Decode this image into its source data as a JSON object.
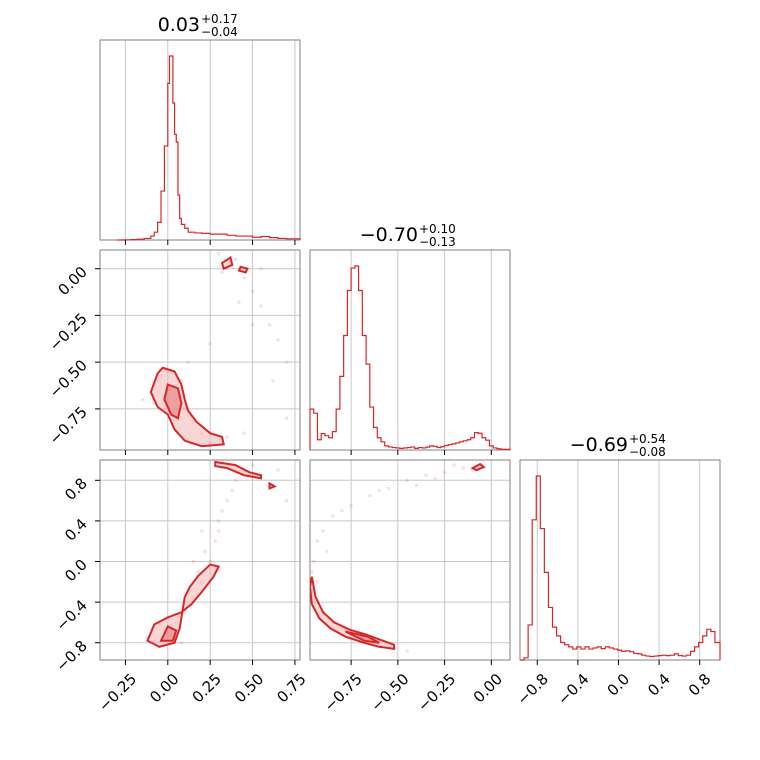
{
  "chart_data": {
    "type": "corner",
    "titles": [
      {
        "value": "0.03",
        "plus": "+0.17",
        "minus": "−0.04"
      },
      {
        "value": "−0.70",
        "plus": "+0.10",
        "minus": "−0.13"
      },
      {
        "value": "−0.69",
        "plus": "+0.54",
        "minus": "−0.08"
      }
    ],
    "ranges": [
      [
        -0.4,
        0.78
      ],
      [
        -0.97,
        0.1
      ],
      [
        -0.97,
        1.0
      ]
    ],
    "ticks": [
      {
        "values": [
          -0.25,
          0.0,
          0.25,
          0.5,
          0.75
        ],
        "labels": [
          "−0.25",
          "0.00",
          "0.25",
          "0.50",
          "0.75"
        ]
      },
      {
        "values": [
          -0.75,
          -0.5,
          -0.25,
          0.0
        ],
        "labels": [
          "−0.75",
          "−0.50",
          "−0.25",
          "0.00"
        ]
      },
      {
        "values": [
          -0.8,
          -0.4,
          0.0,
          0.4,
          0.8
        ],
        "labels": [
          "−0.8",
          "−0.4",
          "0.0",
          "0.4",
          "0.8"
        ]
      }
    ],
    "grid": true,
    "color": "#d62728",
    "histograms": [
      {
        "param": 0,
        "edges": [
          -0.3,
          -0.26,
          -0.22,
          -0.18,
          -0.14,
          -0.1,
          -0.08,
          -0.06,
          -0.04,
          -0.02,
          0.0,
          0.01,
          0.02,
          0.03,
          0.04,
          0.05,
          0.06,
          0.07,
          0.08,
          0.1,
          0.12,
          0.16,
          0.2,
          0.25,
          0.3,
          0.35,
          0.4,
          0.45,
          0.5,
          0.55,
          0.6,
          0.65,
          0.7,
          0.78
        ],
        "counts": [
          0,
          1,
          2,
          4,
          8,
          20,
          40,
          90,
          250,
          480,
          800,
          940,
          940,
          700,
          540,
          500,
          230,
          110,
          80,
          60,
          40,
          36,
          34,
          30,
          30,
          24,
          20,
          20,
          14,
          18,
          12,
          8,
          6
        ]
      },
      {
        "param": 1,
        "edges": [
          -0.97,
          -0.95,
          -0.93,
          -0.91,
          -0.89,
          -0.87,
          -0.85,
          -0.83,
          -0.81,
          -0.79,
          -0.77,
          -0.75,
          -0.73,
          -0.71,
          -0.69,
          -0.67,
          -0.65,
          -0.63,
          -0.61,
          -0.59,
          -0.57,
          -0.55,
          -0.53,
          -0.51,
          -0.49,
          -0.47,
          -0.45,
          -0.43,
          -0.41,
          -0.39,
          -0.37,
          -0.35,
          -0.33,
          -0.31,
          -0.29,
          -0.27,
          -0.25,
          -0.23,
          -0.21,
          -0.19,
          -0.17,
          -0.15,
          -0.13,
          -0.11,
          -0.09,
          -0.07,
          -0.05,
          -0.03,
          -0.01,
          0.01,
          0.03,
          0.05,
          0.07,
          0.1
        ],
        "counts": [
          200,
          180,
          50,
          80,
          70,
          60,
          90,
          200,
          360,
          560,
          780,
          890,
          900,
          780,
          560,
          420,
          210,
          110,
          60,
          40,
          20,
          15,
          12,
          10,
          8,
          10,
          12,
          15,
          8,
          12,
          10,
          14,
          20,
          18,
          12,
          16,
          22,
          26,
          30,
          35,
          40,
          45,
          50,
          60,
          85,
          82,
          60,
          48,
          20,
          10,
          6,
          4,
          3
        ]
      },
      {
        "param": 2,
        "edges": [
          -0.97,
          -0.93,
          -0.89,
          -0.85,
          -0.81,
          -0.77,
          -0.73,
          -0.69,
          -0.65,
          -0.61,
          -0.57,
          -0.53,
          -0.49,
          -0.45,
          -0.41,
          -0.37,
          -0.33,
          -0.29,
          -0.25,
          -0.21,
          -0.17,
          -0.13,
          -0.09,
          -0.05,
          -0.01,
          0.03,
          0.07,
          0.11,
          0.15,
          0.19,
          0.23,
          0.27,
          0.31,
          0.35,
          0.39,
          0.43,
          0.47,
          0.51,
          0.55,
          0.59,
          0.63,
          0.67,
          0.71,
          0.75,
          0.79,
          0.83,
          0.87,
          0.91,
          0.95,
          1.0
        ],
        "counts": [
          0,
          10,
          160,
          640,
          840,
          600,
          400,
          240,
          150,
          110,
          80,
          70,
          60,
          50,
          60,
          50,
          60,
          50,
          55,
          60,
          52,
          60,
          55,
          50,
          45,
          40,
          42,
          38,
          30,
          28,
          22,
          18,
          16,
          18,
          20,
          22,
          20,
          22,
          28,
          20,
          18,
          22,
          40,
          60,
          80,
          110,
          140,
          130,
          80
        ]
      }
    ],
    "scatter_pairs": [
      {
        "row": 1,
        "col": 0,
        "points": [
          [
            0.02,
            -0.65
          ],
          [
            0.05,
            -0.7
          ],
          [
            0.1,
            -0.75
          ],
          [
            0.15,
            -0.82
          ],
          [
            0.2,
            -0.88
          ],
          [
            0.25,
            -0.93
          ],
          [
            -0.05,
            -0.6
          ],
          [
            0.0,
            -0.55
          ],
          [
            0.08,
            -0.6
          ],
          [
            -0.08,
            -0.72
          ],
          [
            0.32,
            -0.02
          ],
          [
            0.38,
            0.02
          ],
          [
            0.45,
            -0.05
          ],
          [
            0.5,
            -0.12
          ],
          [
            0.55,
            -0.2
          ],
          [
            0.6,
            -0.3
          ],
          [
            0.65,
            -0.38
          ],
          [
            0.7,
            -0.5
          ],
          [
            0.3,
            0.08
          ],
          [
            0.42,
            -0.18
          ],
          [
            0.5,
            -0.3
          ],
          [
            0.62,
            -0.6
          ],
          [
            0.7,
            -0.8
          ],
          [
            0.35,
            -0.9
          ],
          [
            0.45,
            -0.88
          ],
          [
            -0.15,
            -0.7
          ],
          [
            0.12,
            -0.5
          ],
          [
            0.25,
            -0.4
          ],
          [
            0.55,
            0.0
          ],
          [
            0.4,
            0.05
          ]
        ]
      },
      {
        "row": 2,
        "col": 0,
        "points": [
          [
            0.0,
            -0.7
          ],
          [
            0.05,
            -0.6
          ],
          [
            0.1,
            -0.5
          ],
          [
            0.15,
            -0.35
          ],
          [
            0.2,
            -0.2
          ],
          [
            0.25,
            0.0
          ],
          [
            0.28,
            0.2
          ],
          [
            0.3,
            0.4
          ],
          [
            0.35,
            0.6
          ],
          [
            0.4,
            0.8
          ],
          [
            0.45,
            0.9
          ],
          [
            0.55,
            0.85
          ],
          [
            0.62,
            0.75
          ],
          [
            0.7,
            0.6
          ],
          [
            -0.08,
            -0.78
          ],
          [
            -0.12,
            -0.75
          ],
          [
            0.08,
            -0.8
          ],
          [
            0.18,
            -0.1
          ],
          [
            0.22,
            0.1
          ],
          [
            0.32,
            0.5
          ],
          [
            0.5,
            0.95
          ],
          [
            0.65,
            0.9
          ],
          [
            0.12,
            -0.3
          ],
          [
            0.06,
            -0.55
          ],
          [
            -0.05,
            -0.62
          ],
          [
            0.3,
            0.3
          ],
          [
            0.38,
            0.7
          ],
          [
            0.2,
            0.3
          ],
          [
            0.15,
            0.0
          ],
          [
            0.28,
            -0.1
          ]
        ]
      },
      {
        "row": 2,
        "col": 1,
        "points": [
          [
            -0.95,
            -0.3
          ],
          [
            -0.93,
            -0.4
          ],
          [
            -0.9,
            -0.5
          ],
          [
            -0.85,
            -0.6
          ],
          [
            -0.78,
            -0.68
          ],
          [
            -0.7,
            -0.74
          ],
          [
            -0.6,
            -0.8
          ],
          [
            -0.52,
            -0.85
          ],
          [
            -0.45,
            -0.88
          ],
          [
            -0.95,
            0.0
          ],
          [
            -0.93,
            0.2
          ],
          [
            -0.9,
            0.3
          ],
          [
            -0.85,
            0.45
          ],
          [
            -0.75,
            0.55
          ],
          [
            -0.65,
            0.65
          ],
          [
            -0.55,
            0.72
          ],
          [
            -0.45,
            0.8
          ],
          [
            -0.35,
            0.85
          ],
          [
            -0.25,
            0.88
          ],
          [
            -0.15,
            0.92
          ],
          [
            -0.05,
            0.95
          ],
          [
            -0.8,
            0.5
          ],
          [
            -0.6,
            0.7
          ],
          [
            -0.3,
            0.82
          ],
          [
            -0.1,
            0.9
          ],
          [
            -0.93,
            -0.2
          ],
          [
            -0.96,
            -0.1
          ],
          [
            -0.88,
            0.1
          ],
          [
            -0.2,
            0.95
          ],
          [
            -0.4,
            0.75
          ]
        ]
      }
    ],
    "contour_pairs": [
      {
        "row": 1,
        "col": 0,
        "outer": [
          [
            [
              -0.03,
              -0.53
            ],
            [
              0.04,
              -0.55
            ],
            [
              0.08,
              -0.62
            ],
            [
              0.1,
              -0.7
            ],
            [
              0.12,
              -0.76
            ],
            [
              0.17,
              -0.82
            ],
            [
              0.25,
              -0.88
            ],
            [
              0.32,
              -0.9
            ],
            [
              0.33,
              -0.94
            ],
            [
              0.2,
              -0.95
            ],
            [
              0.1,
              -0.92
            ],
            [
              0.04,
              -0.86
            ],
            [
              0.0,
              -0.78
            ],
            [
              -0.06,
              -0.74
            ],
            [
              -0.1,
              -0.66
            ],
            [
              -0.06,
              -0.56
            ]
          ]
        ],
        "inner": [
          [
            [
              0.0,
              -0.62
            ],
            [
              0.06,
              -0.64
            ],
            [
              0.08,
              -0.72
            ],
            [
              0.06,
              -0.8
            ],
            [
              0.02,
              -0.78
            ],
            [
              -0.02,
              -0.7
            ]
          ]
        ],
        "extra_outer": [
          [
            [
              0.32,
              0.03
            ],
            [
              0.37,
              0.06
            ],
            [
              0.38,
              0.02
            ],
            [
              0.33,
              0.0
            ]
          ],
          [
            [
              0.43,
              0.01
            ],
            [
              0.47,
              0.0
            ],
            [
              0.46,
              -0.02
            ],
            [
              0.42,
              -0.01
            ]
          ]
        ]
      },
      {
        "row": 2,
        "col": 0,
        "outer": [
          [
            [
              -0.12,
              -0.78
            ],
            [
              -0.08,
              -0.62
            ],
            [
              0.0,
              -0.55
            ],
            [
              0.08,
              -0.5
            ],
            [
              0.14,
              -0.42
            ],
            [
              0.2,
              -0.3
            ],
            [
              0.27,
              -0.15
            ],
            [
              0.3,
              -0.05
            ],
            [
              0.25,
              -0.03
            ],
            [
              0.18,
              -0.14
            ],
            [
              0.13,
              -0.25
            ],
            [
              0.1,
              -0.35
            ],
            [
              0.07,
              -0.66
            ],
            [
              0.04,
              -0.8
            ],
            [
              -0.05,
              -0.84
            ]
          ]
        ],
        "inner": [
          [
            [
              -0.04,
              -0.78
            ],
            [
              0.0,
              -0.64
            ],
            [
              0.05,
              -0.68
            ],
            [
              0.03,
              -0.78
            ]
          ]
        ],
        "extra_outer": [
          [
            [
              0.28,
              0.98
            ],
            [
              0.4,
              0.95
            ],
            [
              0.48,
              0.88
            ],
            [
              0.55,
              0.85
            ],
            [
              0.55,
              0.82
            ],
            [
              0.45,
              0.85
            ],
            [
              0.35,
              0.92
            ],
            [
              0.28,
              0.94
            ]
          ],
          [
            [
              0.6,
              0.77
            ],
            [
              0.63,
              0.74
            ],
            [
              0.6,
              0.72
            ]
          ]
        ]
      },
      {
        "row": 2,
        "col": 1,
        "outer": [
          [
            [
              -0.96,
              -0.15
            ],
            [
              -0.94,
              -0.35
            ],
            [
              -0.9,
              -0.5
            ],
            [
              -0.84,
              -0.6
            ],
            [
              -0.76,
              -0.67
            ],
            [
              -0.67,
              -0.72
            ],
            [
              -0.58,
              -0.78
            ],
            [
              -0.52,
              -0.82
            ],
            [
              -0.52,
              -0.86
            ],
            [
              -0.6,
              -0.84
            ],
            [
              -0.68,
              -0.8
            ],
            [
              -0.78,
              -0.74
            ],
            [
              -0.86,
              -0.66
            ],
            [
              -0.92,
              -0.56
            ],
            [
              -0.96,
              -0.42
            ],
            [
              -0.97,
              -0.25
            ]
          ]
        ],
        "inner": [
          [
            [
              -0.78,
              -0.69
            ],
            [
              -0.66,
              -0.74
            ],
            [
              -0.6,
              -0.8
            ],
            [
              -0.68,
              -0.78
            ]
          ]
        ],
        "extra_outer": [
          [
            [
              -0.1,
              0.92
            ],
            [
              -0.06,
              0.96
            ],
            [
              -0.04,
              0.93
            ],
            [
              -0.08,
              0.9
            ]
          ]
        ]
      }
    ]
  }
}
